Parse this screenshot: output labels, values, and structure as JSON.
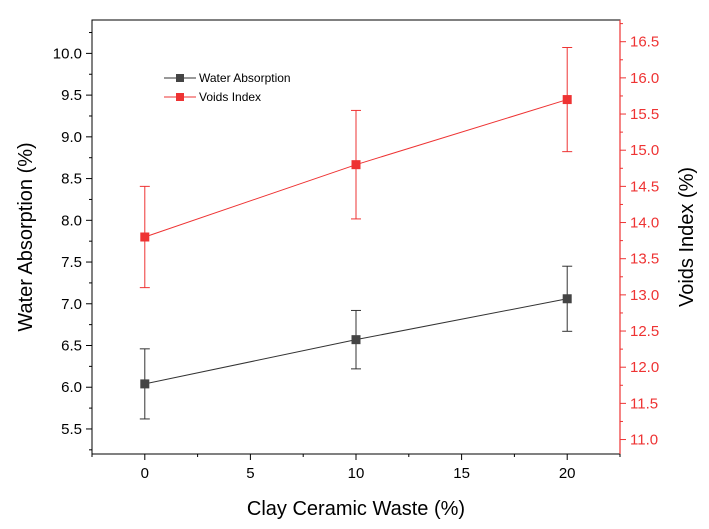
{
  "chart_data": {
    "type": "line",
    "title": "",
    "xlabel": "Clay Ceramic Waste (%)",
    "ylabel": "Water Absorption (%)",
    "y2label": "Voids Index (%)",
    "xlim": [
      -2.5,
      22.5
    ],
    "ylim": [
      5.2,
      10.4
    ],
    "y2lim": [
      10.8,
      16.8
    ],
    "xticks": [
      0,
      5,
      10,
      15,
      20
    ],
    "yticks": [
      5.5,
      6.0,
      6.5,
      7.0,
      7.5,
      8.0,
      8.5,
      9.0,
      9.5,
      10.0
    ],
    "y2ticks": [
      11.0,
      11.5,
      12.0,
      12.5,
      13.0,
      13.5,
      14.0,
      14.5,
      15.0,
      15.5,
      16.0,
      16.5
    ],
    "xtick_labels": [
      "0",
      "5",
      "10",
      "15",
      "20"
    ],
    "ytick_labels": [
      "5.5",
      "6.0",
      "6.5",
      "7.0",
      "7.5",
      "8.0",
      "8.5",
      "9.0",
      "9.5",
      "10.0"
    ],
    "y2tick_labels": [
      "11.0",
      "11.5",
      "12.0",
      "12.5",
      "13.0",
      "13.5",
      "14.0",
      "14.5",
      "15.0",
      "15.5",
      "16.0",
      "16.5"
    ],
    "legend_position": "top-left",
    "grid": false,
    "series": [
      {
        "name": "Water Absorption",
        "axis": "left",
        "color": "#333333",
        "marker_color": "#444444",
        "x": [
          0,
          10,
          20
        ],
        "y": [
          6.04,
          6.57,
          7.06
        ],
        "err": [
          0.42,
          0.35,
          0.39
        ]
      },
      {
        "name": "Voids Index",
        "axis": "right",
        "color": "#ee3333",
        "marker_color": "#ee3333",
        "x": [
          0,
          10,
          20
        ],
        "y": [
          13.8,
          14.8,
          15.7
        ],
        "err": [
          0.7,
          0.75,
          0.72
        ]
      }
    ]
  }
}
